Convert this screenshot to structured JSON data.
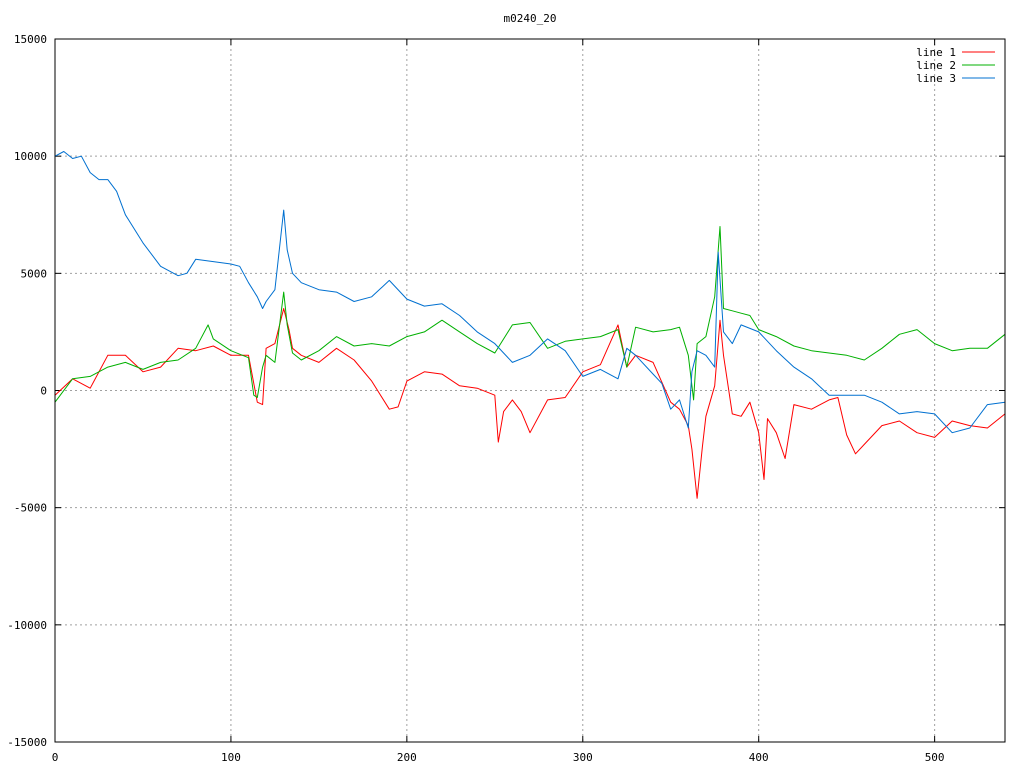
{
  "chart_data": {
    "type": "line",
    "title": "m0240_20",
    "xlabel": "",
    "ylabel": "",
    "xlim": [
      0,
      540
    ],
    "ylim": [
      -15000,
      15000
    ],
    "xticks": [
      0,
      100,
      200,
      300,
      400,
      500
    ],
    "yticks": [
      -15000,
      -10000,
      -5000,
      0,
      5000,
      10000,
      15000
    ],
    "grid": true,
    "legend_position": "top-right",
    "series": [
      {
        "name": "line 1",
        "color": "#ff0000",
        "x": [
          0,
          10,
          20,
          30,
          40,
          50,
          60,
          70,
          80,
          90,
          100,
          110,
          115,
          118,
          120,
          125,
          130,
          133,
          135,
          140,
          150,
          160,
          170,
          180,
          190,
          195,
          200,
          210,
          220,
          230,
          240,
          250,
          252,
          255,
          260,
          265,
          270,
          280,
          290,
          300,
          310,
          320,
          325,
          330,
          340,
          350,
          355,
          360,
          362,
          365,
          368,
          370,
          375,
          378,
          380,
          385,
          390,
          395,
          400,
          403,
          405,
          410,
          415,
          420,
          430,
          440,
          445,
          450,
          455,
          460,
          470,
          480,
          490,
          500,
          510,
          520,
          530,
          540
        ],
        "y": [
          -200,
          500,
          100,
          1500,
          1500,
          800,
          1000,
          1800,
          1700,
          1900,
          1500,
          1500,
          -500,
          -600,
          1800,
          2000,
          3500,
          2600,
          1800,
          1500,
          1200,
          1800,
          1300,
          400,
          -800,
          -700,
          400,
          800,
          700,
          200,
          100,
          -200,
          -2200,
          -900,
          -400,
          -900,
          -1800,
          -400,
          -300,
          800,
          1100,
          2800,
          1000,
          1500,
          1200,
          -500,
          -800,
          -1500,
          -2500,
          -4600,
          -2400,
          -1100,
          200,
          3000,
          1500,
          -1000,
          -1100,
          -500,
          -1800,
          -3800,
          -1200,
          -1800,
          -2900,
          -600,
          -800,
          -400,
          -300,
          -1900,
          -2700,
          -2300,
          -1500,
          -1300,
          -1800,
          -2000,
          -1300,
          -1500,
          -1600,
          -1000
        ]
      },
      {
        "name": "line 2",
        "color": "#00b000",
        "x": [
          0,
          10,
          20,
          30,
          40,
          50,
          60,
          70,
          80,
          87,
          90,
          100,
          110,
          113,
          115,
          118,
          120,
          125,
          130,
          132,
          135,
          140,
          150,
          160,
          170,
          180,
          190,
          200,
          210,
          220,
          230,
          240,
          250,
          260,
          270,
          280,
          290,
          300,
          310,
          320,
          325,
          330,
          340,
          350,
          355,
          360,
          363,
          365,
          370,
          375,
          378,
          380,
          385,
          390,
          395,
          400,
          410,
          420,
          430,
          440,
          450,
          460,
          470,
          480,
          490,
          500,
          510,
          520,
          530,
          540
        ],
        "y": [
          -500,
          500,
          600,
          1000,
          1200,
          900,
          1200,
          1300,
          1800,
          2800,
          2200,
          1700,
          1400,
          -200,
          -300,
          1000,
          1500,
          1200,
          4200,
          2800,
          1600,
          1300,
          1700,
          2300,
          1900,
          2000,
          1900,
          2300,
          2500,
          3000,
          2500,
          2000,
          1600,
          2800,
          2900,
          1800,
          2100,
          2200,
          2300,
          2600,
          1000,
          2700,
          2500,
          2600,
          2700,
          1500,
          -400,
          2000,
          2300,
          4000,
          7000,
          3500,
          3400,
          3300,
          3200,
          2600,
          2300,
          1900,
          1700,
          1600,
          1500,
          1300,
          1800,
          2400,
          2600,
          2000,
          1700,
          1800,
          1800,
          2400
        ]
      },
      {
        "name": "line 3",
        "color": "#0070d0",
        "x": [
          0,
          5,
          10,
          15,
          20,
          25,
          30,
          35,
          40,
          50,
          60,
          70,
          75,
          80,
          90,
          100,
          105,
          110,
          115,
          118,
          120,
          125,
          130,
          132,
          135,
          140,
          150,
          160,
          170,
          180,
          190,
          200,
          210,
          220,
          230,
          240,
          250,
          260,
          270,
          280,
          290,
          300,
          310,
          320,
          325,
          330,
          340,
          345,
          350,
          355,
          360,
          362,
          365,
          370,
          375,
          377,
          380,
          385,
          390,
          400,
          410,
          420,
          430,
          440,
          450,
          460,
          470,
          480,
          490,
          500,
          510,
          520,
          530,
          540
        ],
        "y": [
          10000,
          10200,
          9900,
          10000,
          9300,
          9000,
          9000,
          8500,
          7500,
          6300,
          5300,
          4900,
          5000,
          5600,
          5500,
          5400,
          5300,
          4600,
          4000,
          3500,
          3800,
          4300,
          7700,
          6000,
          5000,
          4600,
          4300,
          4200,
          3800,
          4000,
          4700,
          3900,
          3600,
          3700,
          3200,
          2500,
          2000,
          1200,
          1500,
          2200,
          1700,
          600,
          900,
          500,
          1800,
          1500,
          700,
          300,
          -800,
          -400,
          -1600,
          800,
          1700,
          1500,
          1000,
          5900,
          2500,
          2000,
          2800,
          2500,
          1700,
          1000,
          500,
          -200,
          -200,
          -200,
          -500,
          -1000,
          -900,
          -1000,
          -1800,
          -1600,
          -600,
          -500
        ]
      }
    ]
  }
}
